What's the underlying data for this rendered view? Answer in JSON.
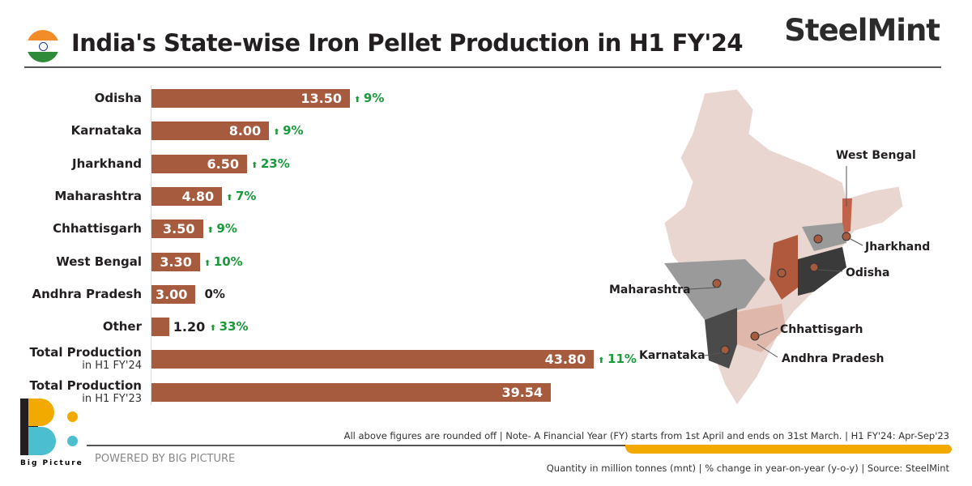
{
  "title": "India's State-wise Iron Pellet Production in H1 FY'24",
  "brand": "SteelMint",
  "chart_data": {
    "type": "bar",
    "orientation": "horizontal",
    "categories": [
      "Odisha",
      "Karnataka",
      "Jharkhand",
      "Maharashtra",
      "Chhattisgarh",
      "West Bengal",
      "Andhra Pradesh",
      "Other",
      "Total Production",
      "Total Production"
    ],
    "category_sublabels": [
      "",
      "",
      "",
      "",
      "",
      "",
      "",
      "",
      "in H1 FY'24",
      "in H1 FY'23"
    ],
    "values": [
      13.5,
      8.0,
      6.5,
      4.8,
      3.5,
      3.3,
      3.0,
      1.2,
      43.8,
      39.54
    ],
    "value_labels": [
      "13.50",
      "8.00",
      "6.50",
      "4.80",
      "3.50",
      "3.30",
      "3.00",
      "1.20",
      "43.80",
      "39.54"
    ],
    "yoy_change": [
      "9%",
      "9%",
      "23%",
      "7%",
      "9%",
      "10%",
      "0%",
      "33%",
      "11%",
      ""
    ],
    "yoy_direction": [
      "up",
      "up",
      "up",
      "up",
      "up",
      "up",
      "flat",
      "up",
      "up",
      ""
    ],
    "unit": "million tonnes",
    "bar_color": "#a65a3e",
    "positive_color": "#1a9a3a"
  },
  "map": {
    "labels": [
      "West Bengal",
      "Jharkhand",
      "Odisha",
      "Maharashtra",
      "Chhattisgarh",
      "Karnataka",
      "Andhra Pradesh"
    ]
  },
  "footer": {
    "note": "All above figures are rounded off | Note- A Financial Year (FY) starts from 1st April and ends on 31st March. | H1 FY'24: Apr-Sep'23",
    "source": "Quantity in million tonnes (mnt) | % change in year-on-year (y-o-y) | Source: SteelMint",
    "powered": "POWERED BY BIG PICTURE",
    "logo_text": "Big Picture"
  }
}
